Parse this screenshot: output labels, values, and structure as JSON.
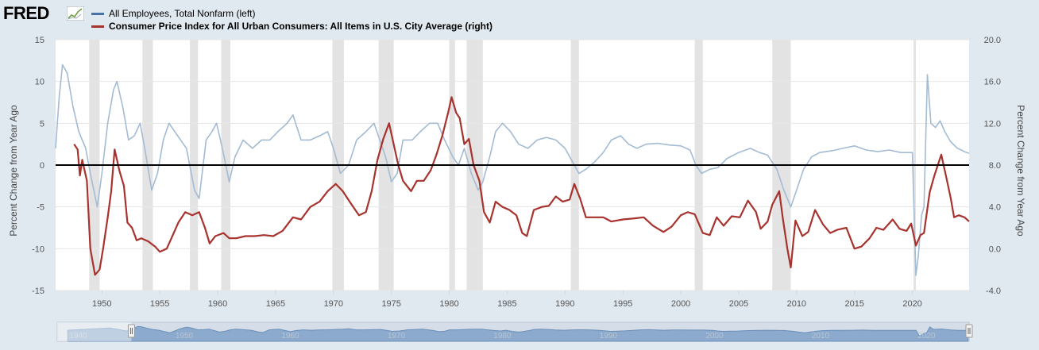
{
  "brand": {
    "logo_text": "FRED"
  },
  "colors": {
    "series_left": "#a3bbd3",
    "series_left_legend": "#4572a7",
    "series_right": "#a8322d",
    "recession": "#e3e3e3",
    "zero_line": "#000000",
    "navigator_fill": "#7fa1c8"
  },
  "icons": {
    "logo_chart": "line-chart-icon",
    "nav_handle": "grip-handle-icon"
  },
  "chart_data": {
    "type": "line",
    "x_axis": {
      "range": [
        1946,
        2024.9
      ],
      "ticks": [
        "1950",
        "1955",
        "1960",
        "1965",
        "1970",
        "1975",
        "1980",
        "1985",
        "1990",
        "1995",
        "2000",
        "2005",
        "2010",
        "2015",
        "2020"
      ]
    },
    "y_left": {
      "label": "Percent Change from Year Ago",
      "range": [
        -15,
        15
      ],
      "ticks": [
        "15",
        "10",
        "5",
        "0",
        "-5",
        "-10",
        "-15"
      ]
    },
    "y_right": {
      "label": "Percent Change from Year Ago",
      "range": [
        -4,
        20
      ],
      "ticks": [
        "20.0",
        "16.0",
        "12.0",
        "8.0",
        "4.0",
        "0.0",
        "-4.0"
      ]
    },
    "grid": true,
    "legend_position": "top-left",
    "recessions": [
      [
        1948.9,
        1949.8
      ],
      [
        1953.5,
        1954.4
      ],
      [
        1957.6,
        1958.3
      ],
      [
        1960.3,
        1961.1
      ],
      [
        1969.9,
        1970.9
      ],
      [
        1973.9,
        1975.2
      ],
      [
        1980.0,
        1980.5
      ],
      [
        1981.5,
        1982.9
      ],
      [
        1990.5,
        1991.2
      ],
      [
        2001.2,
        2001.9
      ],
      [
        2007.9,
        2009.5
      ],
      [
        2020.1,
        2020.3
      ]
    ],
    "series": [
      {
        "name": "All Employees, Total Nonfarm (left)",
        "axis": "left",
        "points": [
          [
            1946.0,
            2
          ],
          [
            1946.3,
            8
          ],
          [
            1946.6,
            12
          ],
          [
            1947.0,
            11
          ],
          [
            1947.5,
            7
          ],
          [
            1948.0,
            4
          ],
          [
            1948.6,
            2
          ],
          [
            1949.0,
            -1
          ],
          [
            1949.6,
            -5
          ],
          [
            1950.0,
            -1
          ],
          [
            1950.5,
            5
          ],
          [
            1951.0,
            9
          ],
          [
            1951.3,
            10
          ],
          [
            1951.8,
            7
          ],
          [
            1952.3,
            3
          ],
          [
            1952.8,
            3.5
          ],
          [
            1953.3,
            5
          ],
          [
            1953.7,
            2
          ],
          [
            1954.3,
            -3
          ],
          [
            1954.8,
            -1
          ],
          [
            1955.3,
            3
          ],
          [
            1955.8,
            5
          ],
          [
            1956.3,
            4
          ],
          [
            1956.8,
            3
          ],
          [
            1957.3,
            2
          ],
          [
            1958.0,
            -3
          ],
          [
            1958.4,
            -4
          ],
          [
            1959.0,
            3
          ],
          [
            1959.5,
            4
          ],
          [
            1959.9,
            5
          ],
          [
            1960.4,
            2
          ],
          [
            1961.0,
            -2
          ],
          [
            1961.5,
            1
          ],
          [
            1962.2,
            3
          ],
          [
            1963.0,
            2
          ],
          [
            1963.8,
            3
          ],
          [
            1964.5,
            3
          ],
          [
            1965.2,
            4
          ],
          [
            1966.0,
            5
          ],
          [
            1966.5,
            6
          ],
          [
            1967.2,
            3
          ],
          [
            1968.0,
            3
          ],
          [
            1968.8,
            3.5
          ],
          [
            1969.5,
            4
          ],
          [
            1970.0,
            2
          ],
          [
            1970.6,
            -1
          ],
          [
            1971.3,
            0
          ],
          [
            1972.0,
            3
          ],
          [
            1972.8,
            4
          ],
          [
            1973.5,
            5
          ],
          [
            1974.0,
            3
          ],
          [
            1974.5,
            1
          ],
          [
            1975.0,
            -2
          ],
          [
            1975.5,
            -1
          ],
          [
            1976.0,
            3
          ],
          [
            1976.8,
            3
          ],
          [
            1977.5,
            4
          ],
          [
            1978.3,
            5
          ],
          [
            1979.0,
            5
          ],
          [
            1979.6,
            3
          ],
          [
            1980.3,
            1
          ],
          [
            1980.8,
            0
          ],
          [
            1981.3,
            2
          ],
          [
            1981.9,
            -1
          ],
          [
            1982.5,
            -3
          ],
          [
            1982.9,
            -2
          ],
          [
            1983.5,
            1
          ],
          [
            1984.0,
            4
          ],
          [
            1984.6,
            5
          ],
          [
            1985.3,
            4
          ],
          [
            1986.0,
            2.5
          ],
          [
            1986.8,
            2
          ],
          [
            1987.6,
            3
          ],
          [
            1988.4,
            3.3
          ],
          [
            1989.2,
            3
          ],
          [
            1990.0,
            2
          ],
          [
            1990.6,
            0.5
          ],
          [
            1991.2,
            -1
          ],
          [
            1991.8,
            -0.5
          ],
          [
            1992.5,
            0.3
          ],
          [
            1993.3,
            1.5
          ],
          [
            1994.0,
            3
          ],
          [
            1994.8,
            3.5
          ],
          [
            1995.5,
            2.5
          ],
          [
            1996.2,
            2
          ],
          [
            1997.0,
            2.5
          ],
          [
            1998.0,
            2.6
          ],
          [
            1999.0,
            2.4
          ],
          [
            2000.0,
            2.3
          ],
          [
            2000.8,
            1.8
          ],
          [
            2001.3,
            0
          ],
          [
            2001.8,
            -1
          ],
          [
            2002.5,
            -0.5
          ],
          [
            2003.2,
            -0.3
          ],
          [
            2004.0,
            0.8
          ],
          [
            2005.0,
            1.5
          ],
          [
            2006.0,
            2
          ],
          [
            2006.8,
            1.5
          ],
          [
            2007.5,
            1.2
          ],
          [
            2008.3,
            -0.5
          ],
          [
            2008.9,
            -3
          ],
          [
            2009.5,
            -5
          ],
          [
            2010.0,
            -3
          ],
          [
            2010.6,
            -0.5
          ],
          [
            2011.3,
            1
          ],
          [
            2012.0,
            1.5
          ],
          [
            2013.0,
            1.7
          ],
          [
            2014.0,
            2
          ],
          [
            2015.0,
            2.3
          ],
          [
            2016.0,
            1.8
          ],
          [
            2017.0,
            1.6
          ],
          [
            2018.0,
            1.8
          ],
          [
            2019.0,
            1.5
          ],
          [
            2020.0,
            1.5
          ],
          [
            2020.3,
            -13.2
          ],
          [
            2020.5,
            -11
          ],
          [
            2020.8,
            -6
          ],
          [
            2021.0,
            -5
          ],
          [
            2021.3,
            10.8
          ],
          [
            2021.6,
            5
          ],
          [
            2022.0,
            4.5
          ],
          [
            2022.4,
            5.3
          ],
          [
            2022.8,
            4
          ],
          [
            2023.3,
            2.8
          ],
          [
            2023.9,
            2
          ],
          [
            2024.5,
            1.6
          ],
          [
            2024.9,
            1.4
          ]
        ]
      },
      {
        "name": "Consumer Price Index for All Urban Consumers: All Items in U.S. City Average (right)",
        "axis": "right",
        "points": [
          [
            1947.6,
            10
          ],
          [
            1947.9,
            9.5
          ],
          [
            1948.1,
            7
          ],
          [
            1948.3,
            8.5
          ],
          [
            1948.7,
            6.5
          ],
          [
            1949.0,
            0
          ],
          [
            1949.4,
            -2.5
          ],
          [
            1949.8,
            -2
          ],
          [
            1950.1,
            0
          ],
          [
            1950.5,
            3
          ],
          [
            1950.8,
            5.5
          ],
          [
            1951.1,
            9.5
          ],
          [
            1951.5,
            7.5
          ],
          [
            1951.9,
            6
          ],
          [
            1952.2,
            2.5
          ],
          [
            1952.6,
            2
          ],
          [
            1953.0,
            0.8
          ],
          [
            1953.4,
            1
          ],
          [
            1954.0,
            0.7
          ],
          [
            1954.6,
            0.2
          ],
          [
            1955.0,
            -0.3
          ],
          [
            1955.6,
            0
          ],
          [
            1956.0,
            1
          ],
          [
            1956.6,
            2.5
          ],
          [
            1957.2,
            3.5
          ],
          [
            1957.8,
            3.2
          ],
          [
            1958.4,
            3.5
          ],
          [
            1958.9,
            2
          ],
          [
            1959.3,
            0.5
          ],
          [
            1959.8,
            1.2
          ],
          [
            1960.5,
            1.5
          ],
          [
            1961.0,
            1
          ],
          [
            1961.6,
            1
          ],
          [
            1962.4,
            1.2
          ],
          [
            1963.2,
            1.2
          ],
          [
            1964.0,
            1.3
          ],
          [
            1964.8,
            1.2
          ],
          [
            1965.6,
            1.7
          ],
          [
            1966.5,
            3
          ],
          [
            1967.2,
            2.8
          ],
          [
            1968.0,
            4
          ],
          [
            1968.8,
            4.5
          ],
          [
            1969.5,
            5.5
          ],
          [
            1970.2,
            6.2
          ],
          [
            1970.8,
            5.5
          ],
          [
            1971.4,
            4.5
          ],
          [
            1972.2,
            3.2
          ],
          [
            1972.8,
            3.5
          ],
          [
            1973.3,
            5.5
          ],
          [
            1973.8,
            8.5
          ],
          [
            1974.3,
            10.5
          ],
          [
            1974.8,
            12
          ],
          [
            1975.2,
            10
          ],
          [
            1975.6,
            8
          ],
          [
            1976.0,
            6.5
          ],
          [
            1976.7,
            5.5
          ],
          [
            1977.2,
            6.5
          ],
          [
            1977.8,
            6.5
          ],
          [
            1978.4,
            7.5
          ],
          [
            1978.9,
            9
          ],
          [
            1979.4,
            10.8
          ],
          [
            1979.9,
            13
          ],
          [
            1980.2,
            14.5
          ],
          [
            1980.6,
            13
          ],
          [
            1980.9,
            12.5
          ],
          [
            1981.3,
            10
          ],
          [
            1981.7,
            10.5
          ],
          [
            1982.1,
            8
          ],
          [
            1982.6,
            6.5
          ],
          [
            1983.0,
            3.5
          ],
          [
            1983.5,
            2.5
          ],
          [
            1984.0,
            4.5
          ],
          [
            1984.6,
            4
          ],
          [
            1985.2,
            3.7
          ],
          [
            1985.8,
            3.2
          ],
          [
            1986.3,
            1.5
          ],
          [
            1986.7,
            1.2
          ],
          [
            1987.3,
            3.7
          ],
          [
            1988.0,
            4
          ],
          [
            1988.6,
            4.1
          ],
          [
            1989.2,
            5
          ],
          [
            1989.8,
            4.5
          ],
          [
            1990.4,
            4.7
          ],
          [
            1990.8,
            6.2
          ],
          [
            1991.3,
            4.8
          ],
          [
            1991.8,
            3
          ],
          [
            1992.5,
            3
          ],
          [
            1993.3,
            3
          ],
          [
            1994.0,
            2.6
          ],
          [
            1995.0,
            2.8
          ],
          [
            1996.0,
            2.9
          ],
          [
            1996.8,
            3
          ],
          [
            1997.6,
            2.2
          ],
          [
            1998.5,
            1.6
          ],
          [
            1999.2,
            2.1
          ],
          [
            2000.0,
            3.2
          ],
          [
            2000.6,
            3.5
          ],
          [
            2001.2,
            3.3
          ],
          [
            2001.9,
            1.5
          ],
          [
            2002.5,
            1.3
          ],
          [
            2003.1,
            3
          ],
          [
            2003.7,
            2.2
          ],
          [
            2004.4,
            3.1
          ],
          [
            2005.1,
            3
          ],
          [
            2005.8,
            4.6
          ],
          [
            2006.5,
            3.5
          ],
          [
            2006.9,
            1.9
          ],
          [
            2007.5,
            2.6
          ],
          [
            2007.9,
            4.2
          ],
          [
            2008.5,
            5.5
          ],
          [
            2008.8,
            3
          ],
          [
            2009.2,
            0
          ],
          [
            2009.5,
            -1.8
          ],
          [
            2009.9,
            2.7
          ],
          [
            2010.5,
            1.2
          ],
          [
            2011.0,
            1.6
          ],
          [
            2011.6,
            3.7
          ],
          [
            2012.3,
            2.3
          ],
          [
            2012.9,
            1.5
          ],
          [
            2013.5,
            1.8
          ],
          [
            2014.3,
            2
          ],
          [
            2015.0,
            0
          ],
          [
            2015.6,
            0.2
          ],
          [
            2016.3,
            1
          ],
          [
            2016.9,
            2
          ],
          [
            2017.5,
            1.8
          ],
          [
            2018.3,
            2.8
          ],
          [
            2018.9,
            1.9
          ],
          [
            2019.5,
            1.7
          ],
          [
            2019.9,
            2.4
          ],
          [
            2020.3,
            0.3
          ],
          [
            2020.7,
            1.3
          ],
          [
            2021.0,
            1.5
          ],
          [
            2021.5,
            5.4
          ],
          [
            2021.9,
            7
          ],
          [
            2022.5,
            9
          ],
          [
            2022.9,
            7
          ],
          [
            2023.3,
            4.9
          ],
          [
            2023.6,
            3
          ],
          [
            2024.0,
            3.2
          ],
          [
            2024.5,
            3
          ],
          [
            2024.9,
            2.6
          ]
        ]
      }
    ]
  },
  "navigator": {
    "ticks": [
      "1940",
      "1950",
      "1960",
      "1970",
      "1980",
      "1990",
      "2000",
      "2010",
      "2020"
    ]
  }
}
